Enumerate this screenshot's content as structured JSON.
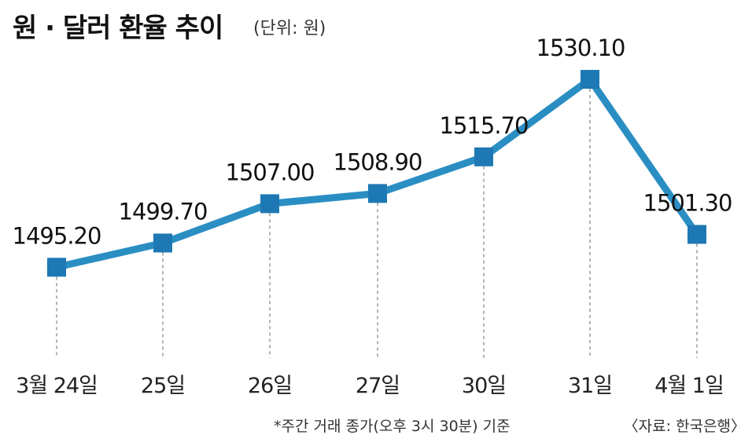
{
  "header": {
    "title": "원 · 달러 환율 추이",
    "unit": "(단위: 원)"
  },
  "footer": {
    "footnote": "*주간 거래 종가(오후 3시 30분) 기준",
    "source": "〈자료: 한국은행〉"
  },
  "chart_data": {
    "type": "line",
    "categories": [
      "3월 24일",
      "25일",
      "26일",
      "27일",
      "30일",
      "31일",
      "4월 1일"
    ],
    "series": [
      {
        "values": [
          1495.2,
          1499.7,
          1507.0,
          1508.9,
          1515.7,
          1530.1,
          1501.3
        ],
        "labels": [
          "1495.20",
          "1499.70",
          "1507.00",
          "1508.90",
          "1515.70",
          "1530.10",
          "1501.30"
        ]
      }
    ],
    "xlabel": "",
    "ylabel": "",
    "ylim": [
      1490,
      1532
    ],
    "grid": false,
    "legend": "none",
    "line_color": "#2a8ec3",
    "marker_color": "#1e78b4",
    "guide_color": "#9a9a9a"
  }
}
